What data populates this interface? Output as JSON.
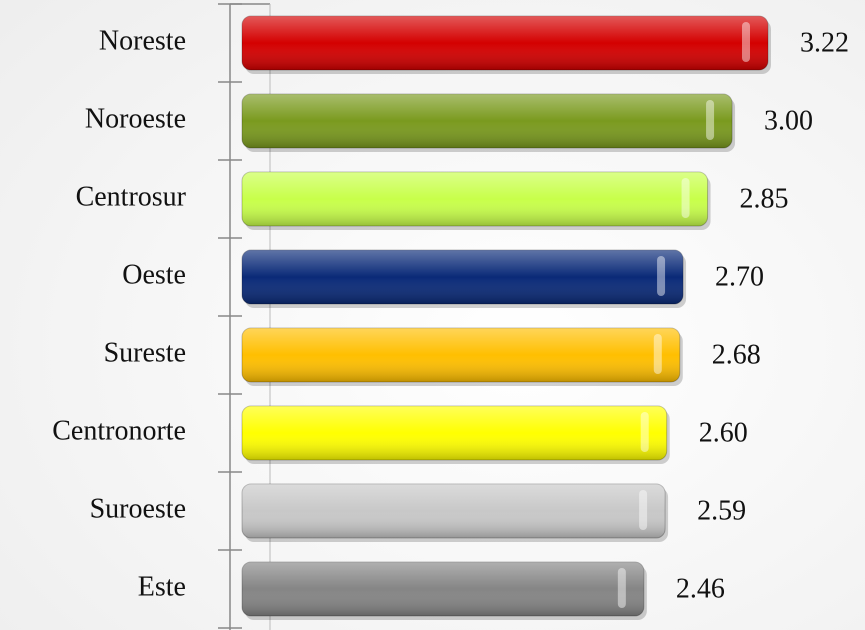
{
  "chart_data": {
    "type": "bar",
    "orientation": "horizontal",
    "categories": [
      "Noreste",
      "Noroeste",
      "Centrosur",
      "Oeste",
      "Sureste",
      "Centronorte",
      "Suroeste",
      "Este"
    ],
    "values": [
      3.22,
      3.0,
      2.85,
      2.7,
      2.68,
      2.6,
      2.59,
      2.46
    ],
    "value_labels": [
      "3.22",
      "3.00",
      "2.85",
      "2.70",
      "2.68",
      "2.60",
      "2.59",
      "2.46"
    ],
    "colors": [
      "#d40000",
      "#7a9a1e",
      "#c8ff4a",
      "#0a2a78",
      "#ffbf00",
      "#ffff00",
      "#c8c8c8",
      "#858585"
    ]
  }
}
